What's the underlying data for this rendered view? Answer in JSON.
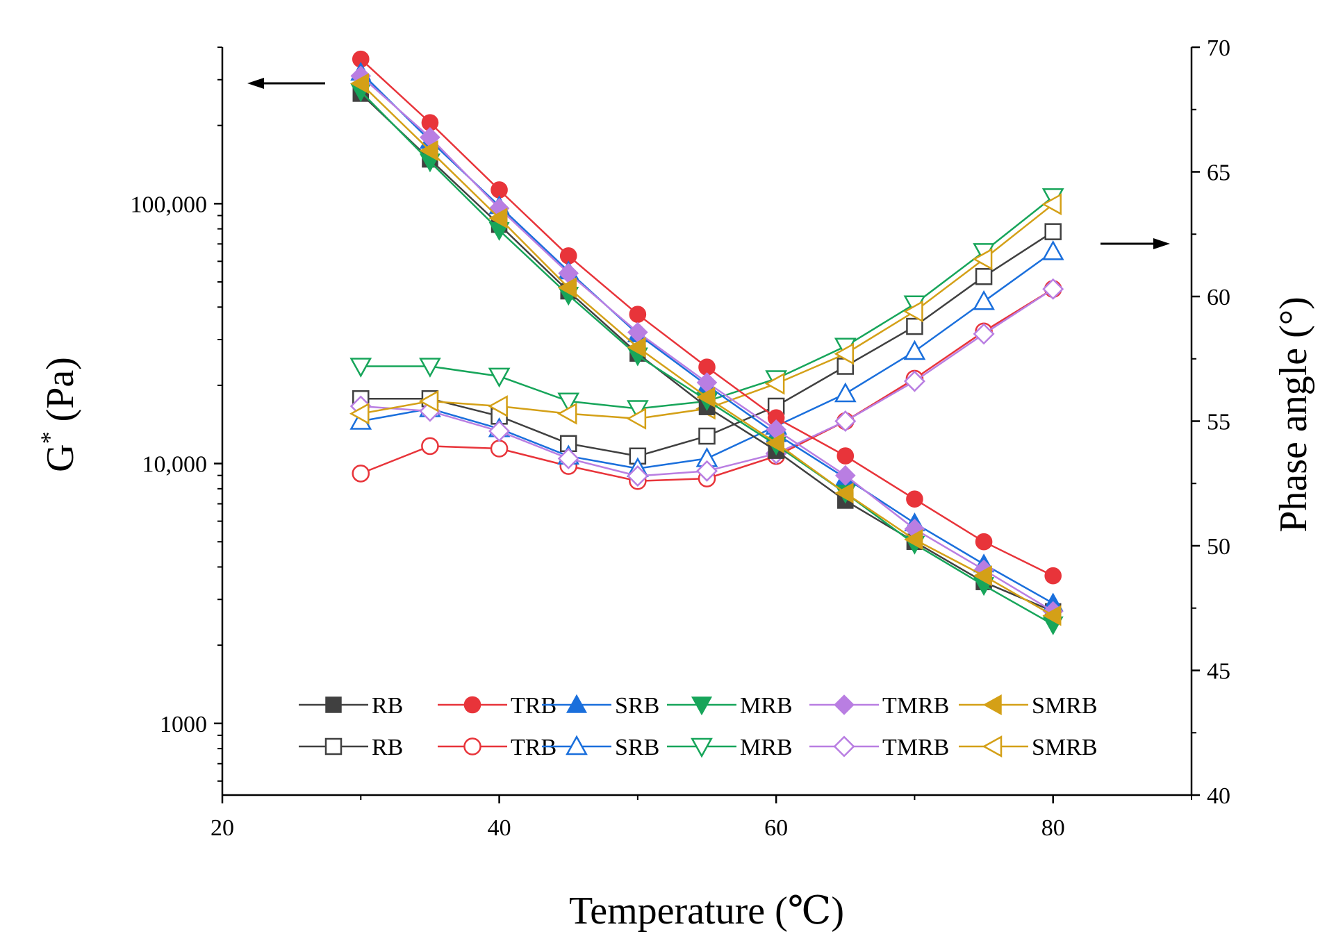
{
  "chart_data": {
    "type": "line",
    "title": "",
    "xlabel": "Temperature (℃)",
    "ylabel_left": {
      "main": "G",
      "sup": "*",
      "unit": " (Pa)"
    },
    "ylabel_right": "Phase angle (°)",
    "x": [
      30,
      35,
      40,
      45,
      50,
      55,
      60,
      65,
      70,
      75,
      80
    ],
    "x_range": [
      20,
      90
    ],
    "x_ticks": [
      20,
      40,
      60,
      80
    ],
    "x_tick_labels": [
      "20",
      "40",
      "60",
      "80"
    ],
    "y_left": {
      "scale": "log",
      "range": [
        530,
        400000
      ],
      "ticks": [
        1000,
        10000,
        100000
      ],
      "tick_labels": [
        "1000",
        "10,000",
        "100,000"
      ]
    },
    "y_right": {
      "scale": "linear",
      "range": [
        40,
        70
      ],
      "ticks": [
        40,
        45,
        50,
        55,
        60,
        65,
        70
      ],
      "tick_labels": [
        "40",
        "45",
        "50",
        "55",
        "60",
        "65",
        "70"
      ]
    },
    "series": [
      {
        "name": "RB",
        "axis": "left",
        "color": "#404040",
        "marker": "square",
        "filled": true,
        "values": [
          265000,
          148000,
          83000,
          46000,
          26500,
          16500,
          11200,
          7200,
          5000,
          3500,
          2700
        ]
      },
      {
        "name": "TRB",
        "axis": "left",
        "color": "#e8343a",
        "marker": "circle",
        "filled": true,
        "values": [
          360000,
          205000,
          113000,
          63000,
          37500,
          23500,
          15000,
          10700,
          7300,
          5000,
          3700
        ]
      },
      {
        "name": "SRB",
        "axis": "left",
        "color": "#1a6fdc",
        "marker": "triangle-up",
        "filled": true,
        "values": [
          320000,
          175000,
          98000,
          55000,
          31500,
          20000,
          13000,
          8800,
          5900,
          4100,
          2900
        ]
      },
      {
        "name": "MRB",
        "axis": "left",
        "color": "#17a55a",
        "marker": "triangle-down",
        "filled": true,
        "values": [
          270000,
          145000,
          79000,
          44500,
          26000,
          17500,
          11800,
          7700,
          4900,
          3400,
          2400
        ]
      },
      {
        "name": "TMRB",
        "axis": "left",
        "color": "#b97ee2",
        "marker": "diamond",
        "filled": true,
        "values": [
          310000,
          180000,
          96000,
          54000,
          32000,
          20500,
          13500,
          9000,
          5600,
          3900,
          2700
        ]
      },
      {
        "name": "SMRB",
        "axis": "left",
        "color": "#d4a017",
        "marker": "triangle-left",
        "filled": true,
        "values": [
          290000,
          160000,
          88000,
          47500,
          28000,
          18000,
          12000,
          7700,
          5100,
          3700,
          2600
        ]
      },
      {
        "name": "RB",
        "axis": "right",
        "color": "#404040",
        "marker": "square",
        "filled": false,
        "values": [
          55.9,
          55.9,
          55.2,
          54.1,
          53.6,
          54.4,
          55.6,
          57.2,
          58.8,
          60.8,
          62.6
        ]
      },
      {
        "name": "TRB",
        "axis": "right",
        "color": "#e8343a",
        "marker": "circle",
        "filled": false,
        "values": [
          52.9,
          54.0,
          53.9,
          53.2,
          52.6,
          52.7,
          53.6,
          55.0,
          56.7,
          58.6,
          60.3
        ]
      },
      {
        "name": "SRB",
        "axis": "right",
        "color": "#1a6fdc",
        "marker": "triangle-up",
        "filled": false,
        "values": [
          55.0,
          55.5,
          54.7,
          53.6,
          53.1,
          53.5,
          54.8,
          56.1,
          57.8,
          59.8,
          61.8
        ]
      },
      {
        "name": "MRB",
        "axis": "right",
        "color": "#17a55a",
        "marker": "triangle-down",
        "filled": false,
        "values": [
          57.2,
          57.2,
          56.8,
          55.8,
          55.5,
          55.8,
          56.7,
          58.0,
          59.7,
          61.8,
          64.0
        ]
      },
      {
        "name": "TMRB",
        "axis": "right",
        "color": "#b97ee2",
        "marker": "diamond",
        "filled": false,
        "values": [
          55.6,
          55.4,
          54.6,
          53.5,
          52.8,
          53.0,
          53.7,
          55.0,
          56.6,
          58.5,
          60.3
        ]
      },
      {
        "name": "SMRB",
        "axis": "right",
        "color": "#d4a017",
        "marker": "triangle-left",
        "filled": false,
        "values": [
          55.3,
          55.8,
          55.6,
          55.3,
          55.1,
          55.5,
          56.5,
          57.7,
          59.4,
          61.5,
          63.7
        ]
      }
    ],
    "legend": {
      "placement": "bottom-center",
      "columns": 6,
      "rows": 2
    },
    "annotations": [
      {
        "type": "arrow",
        "direction": "left",
        "meaning": "filled series use left G* axis"
      },
      {
        "type": "arrow",
        "direction": "right",
        "meaning": "open series use right phase angle axis"
      }
    ],
    "grid": false
  }
}
